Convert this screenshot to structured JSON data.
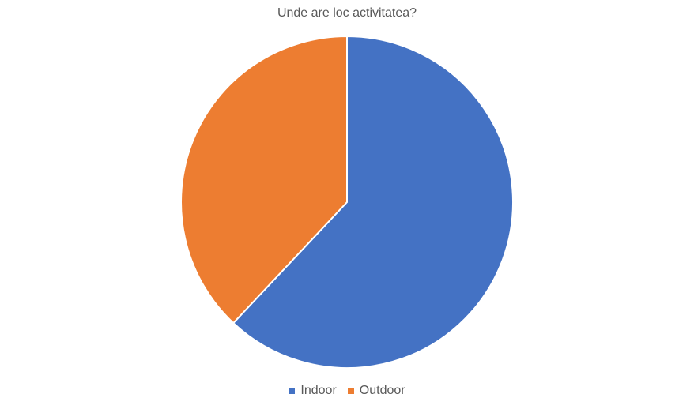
{
  "chart_data": {
    "type": "pie",
    "title": "Unde are loc activitatea?",
    "categories": [
      "Indoor",
      "Outdoor"
    ],
    "values": [
      62,
      38
    ],
    "colors": [
      "#4472C4",
      "#ED7D31"
    ],
    "start_angle_deg": 0,
    "direction": "clockwise",
    "legend_position": "bottom"
  }
}
